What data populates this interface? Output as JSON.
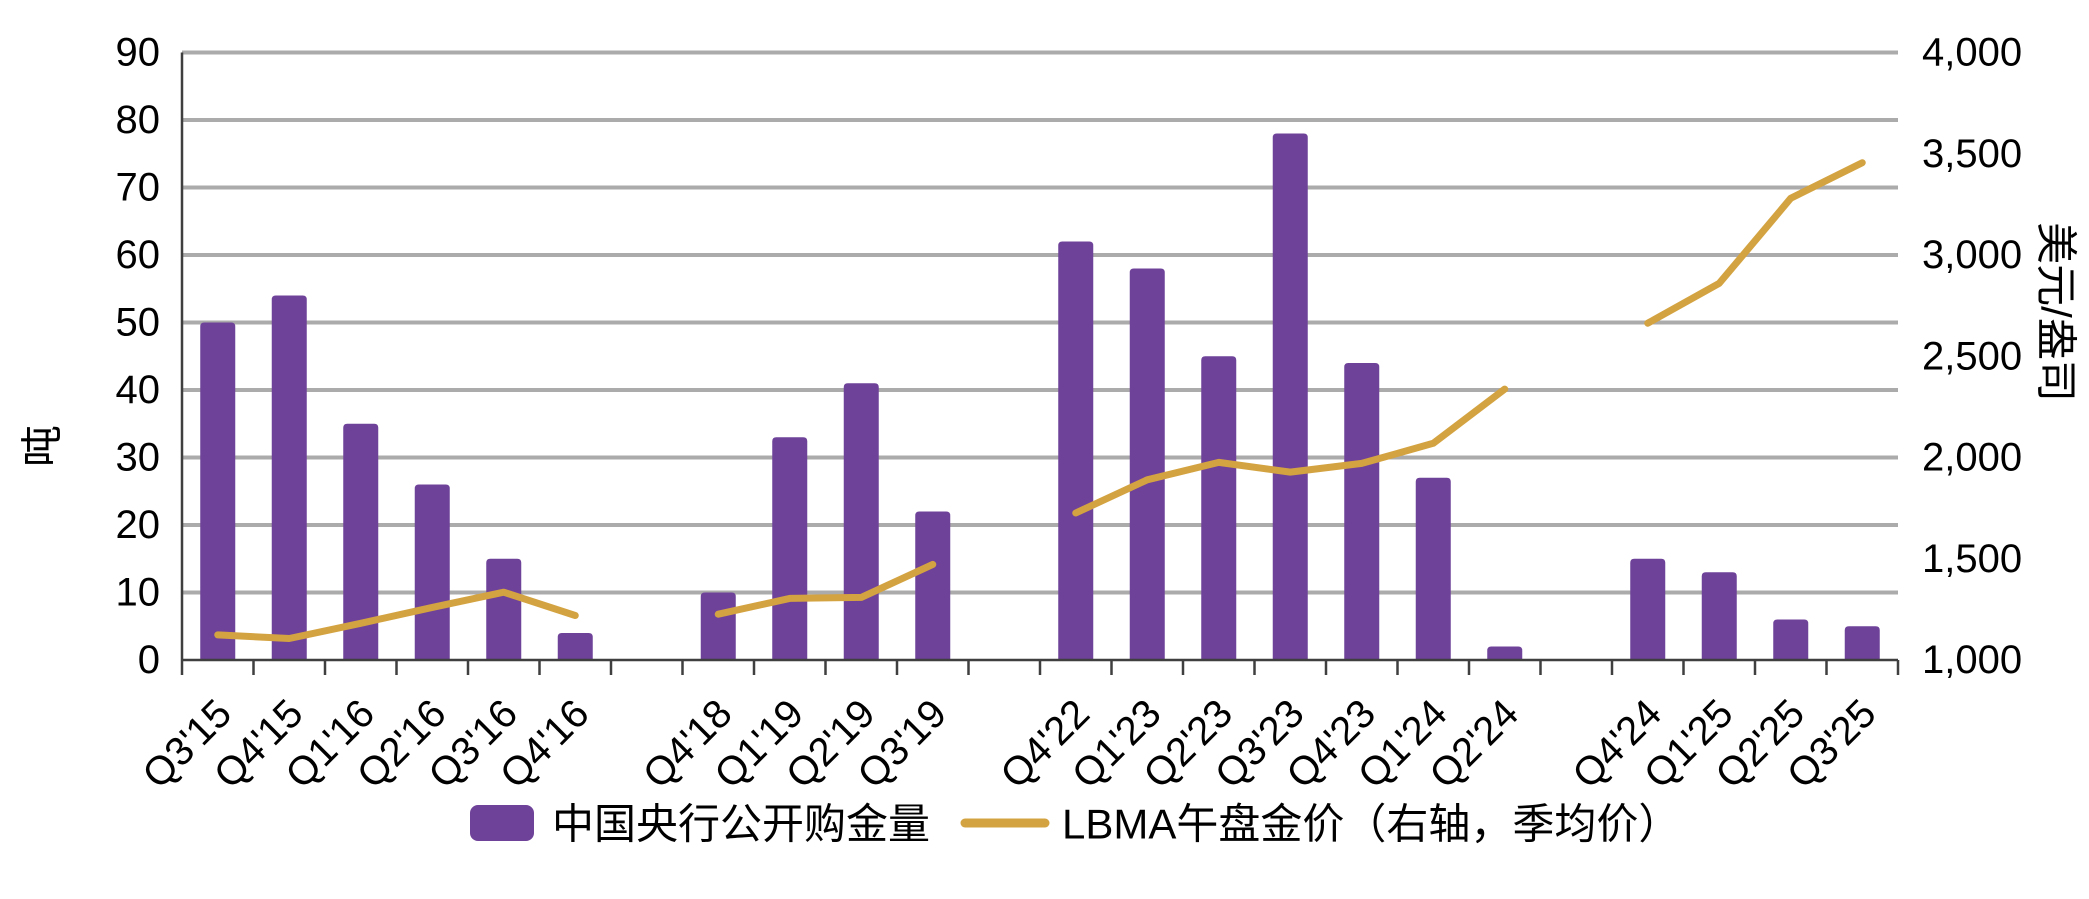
{
  "chart_data": {
    "type": "bar",
    "combo": "bar+line",
    "title": "",
    "categories": [
      "Q3'15",
      "Q4'15",
      "Q1'16",
      "Q2'16",
      "Q3'16",
      "Q4'16",
      "Q4'18",
      "Q1'19",
      "Q2'19",
      "Q3'19",
      "Q4'22",
      "Q1'23",
      "Q2'23",
      "Q3'23",
      "Q4'23",
      "Q1'24",
      "Q2'24",
      "Q4'24",
      "Q1'25",
      "Q2'25",
      "Q3'25"
    ],
    "series": [
      {
        "name": "中国央行公开购金量",
        "type": "bar",
        "axis": "left",
        "unit": "吨",
        "color": "#6F4299",
        "values": [
          50,
          54,
          35,
          26,
          15,
          4,
          10,
          33,
          41,
          22,
          62,
          58,
          45,
          78,
          44,
          27,
          2,
          15,
          13,
          6,
          5
        ]
      },
      {
        "name": "LBMA午盘金价（右轴，季均价）",
        "type": "line",
        "axis": "right",
        "unit": "美元/盎司",
        "color": "#D4A341",
        "values": [
          1124,
          1106,
          1181,
          1260,
          1335,
          1220,
          1226,
          1304,
          1309,
          1472,
          1726,
          1890,
          1976,
          1928,
          1971,
          2070,
          2338,
          2663,
          2860,
          3280,
          3456
        ]
      }
    ],
    "left_axis": {
      "title": "吨",
      "min": 0,
      "max": 90,
      "step": 10,
      "labels": [
        "0",
        "10",
        "20",
        "30",
        "40",
        "50",
        "60",
        "70",
        "80",
        "90"
      ]
    },
    "right_axis": {
      "title": "美元/盎司",
      "min": 1000,
      "max": 4000,
      "step": 500,
      "labels": [
        "1,000",
        "1,500",
        "2,000",
        "2,500",
        "3,000",
        "3,500",
        "4,000"
      ]
    },
    "grid": "horizontal",
    "legend_position": "bottom",
    "groups": [
      {
        "start_slot": 0,
        "count": 6
      },
      {
        "start_slot": 7,
        "count": 4
      },
      {
        "start_slot": 12,
        "count": 7
      },
      {
        "start_slot": 20,
        "count": 4
      }
    ],
    "total_slots": 24
  },
  "legend": {
    "items": [
      {
        "label": "中国央行公开购金量",
        "marker": "bar-swatch",
        "color": "#6F4299"
      },
      {
        "label": "LBMA午盘金价（右轴，季均价）",
        "marker": "line-swatch",
        "color": "#D4A341"
      }
    ]
  },
  "colors": {
    "bar": "#6F4299",
    "line": "#D4A341",
    "gridline": "#ABABAB",
    "axis": "#3F3F3F",
    "text": "#000000"
  }
}
